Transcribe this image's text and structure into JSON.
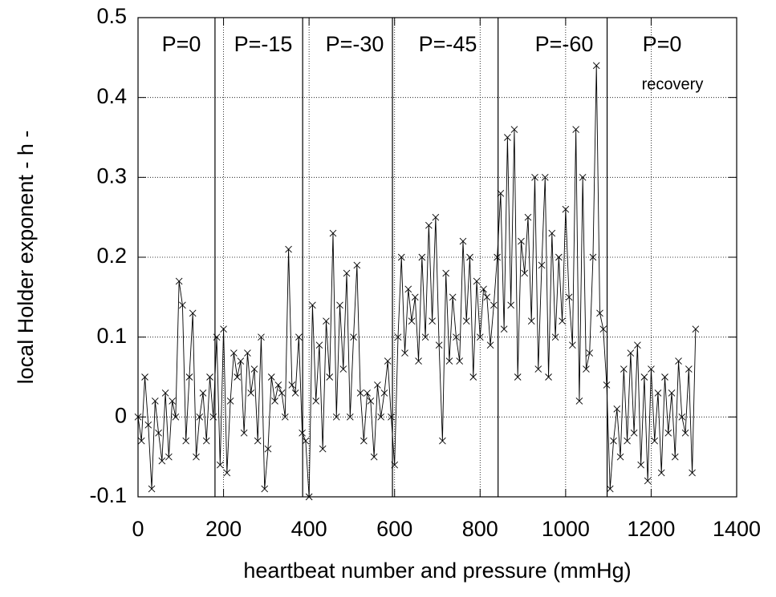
{
  "chart_data": {
    "type": "line",
    "y_label": "local Holder exponent  - h -",
    "x_label": "heartbeat number and pressure (mmHg)",
    "annotations": [
      "P=0",
      "P=-15",
      "P=-30",
      "P=-45",
      "P=-60",
      "P=0",
      "recovery"
    ],
    "separators": [
      180,
      385,
      595,
      842,
      1097
    ],
    "x": [
      0,
      8,
      16,
      24,
      32,
      40,
      48,
      56,
      64,
      72,
      80,
      88,
      96,
      104,
      112,
      120,
      128,
      136,
      144,
      152,
      160,
      168,
      176,
      184,
      192,
      200,
      208,
      216,
      224,
      232,
      240,
      248,
      256,
      264,
      272,
      280,
      288,
      296,
      304,
      312,
      320,
      328,
      336,
      344,
      352,
      360,
      368,
      376,
      384,
      392,
      400,
      408,
      416,
      424,
      432,
      440,
      448,
      456,
      464,
      472,
      480,
      488,
      496,
      504,
      512,
      520,
      528,
      536,
      544,
      552,
      560,
      568,
      576,
      584,
      592,
      600,
      608,
      616,
      624,
      632,
      640,
      648,
      656,
      664,
      672,
      680,
      688,
      696,
      704,
      712,
      720,
      728,
      736,
      744,
      752,
      760,
      768,
      776,
      784,
      792,
      800,
      808,
      816,
      824,
      832,
      840,
      848,
      856,
      864,
      872,
      880,
      888,
      896,
      904,
      912,
      920,
      928,
      936,
      944,
      952,
      960,
      968,
      976,
      984,
      992,
      1000,
      1008,
      1016,
      1024,
      1032,
      1040,
      1048,
      1056,
      1064,
      1072,
      1080,
      1088,
      1096,
      1104,
      1112,
      1120,
      1128,
      1136,
      1144,
      1152,
      1160,
      1168,
      1176,
      1184,
      1192,
      1200,
      1208,
      1216,
      1224,
      1232,
      1240,
      1248,
      1256,
      1264,
      1272,
      1280,
      1288,
      1296,
      1304
    ],
    "series": [
      {
        "color": "#000000",
        "marker": "x",
        "values": [
          0,
          -0.03,
          0.05,
          -0.01,
          -0.09,
          0.02,
          -0.02,
          -0.055,
          0.03,
          -0.05,
          0.02,
          0.0,
          0.17,
          0.14,
          -0.03,
          0.05,
          0.13,
          -0.05,
          0.0,
          0.03,
          -0.03,
          0.05,
          0.0,
          0.1,
          -0.06,
          0.11,
          -0.07,
          0.02,
          0.08,
          0.05,
          0.07,
          -0.02,
          0.08,
          0.03,
          0.06,
          -0.03,
          0.1,
          -0.09,
          -0.04,
          0.05,
          0.02,
          0.04,
          0.03,
          0.0,
          0.21,
          0.04,
          0.03,
          0.1,
          -0.02,
          -0.03,
          -0.1,
          0.14,
          0.02,
          0.09,
          -0.04,
          0.12,
          0.05,
          0.23,
          0.0,
          0.14,
          0.06,
          0.18,
          0.0,
          0.1,
          0.19,
          0.03,
          -0.03,
          0.03,
          0.02,
          -0.05,
          0.04,
          0.0,
          0.03,
          0.07,
          0.0,
          -0.06,
          0.1,
          0.2,
          0.08,
          0.16,
          0.12,
          0.15,
          0.07,
          0.2,
          0.1,
          0.24,
          0.12,
          0.25,
          0.09,
          -0.03,
          0.18,
          0.07,
          0.15,
          0.1,
          0.07,
          0.22,
          0.12,
          0.2,
          0.05,
          0.17,
          0.1,
          0.16,
          0.15,
          0.09,
          0.14,
          0.2,
          0.28,
          0.11,
          0.35,
          0.14,
          0.36,
          0.05,
          0.22,
          0.18,
          0.25,
          0.12,
          0.3,
          0.06,
          0.19,
          0.3,
          0.05,
          0.23,
          0.1,
          0.2,
          0.12,
          0.26,
          0.15,
          0.09,
          0.36,
          0.02,
          0.3,
          0.06,
          0.08,
          0.2,
          0.44,
          0.13,
          0.11,
          0.04,
          -0.09,
          -0.03,
          0.01,
          -0.05,
          0.06,
          -0.03,
          0.08,
          -0.02,
          0.09,
          -0.06,
          0.05,
          -0.08,
          0.06,
          -0.03,
          0.03,
          -0.07,
          0.05,
          -0.02,
          0.03,
          -0.05,
          0.07,
          0.0,
          -0.02,
          0.06,
          -0.07,
          0.11
        ]
      }
    ],
    "xlim": [
      0,
      1400
    ],
    "xticks": [
      0,
      200,
      400,
      600,
      800,
      1000,
      1200,
      1400
    ],
    "ylim": [
      -0.1,
      0.5
    ],
    "yticks": [
      -0.1,
      0,
      0.1,
      0.2,
      0.3,
      0.4,
      0.5
    ],
    "grid": true
  }
}
